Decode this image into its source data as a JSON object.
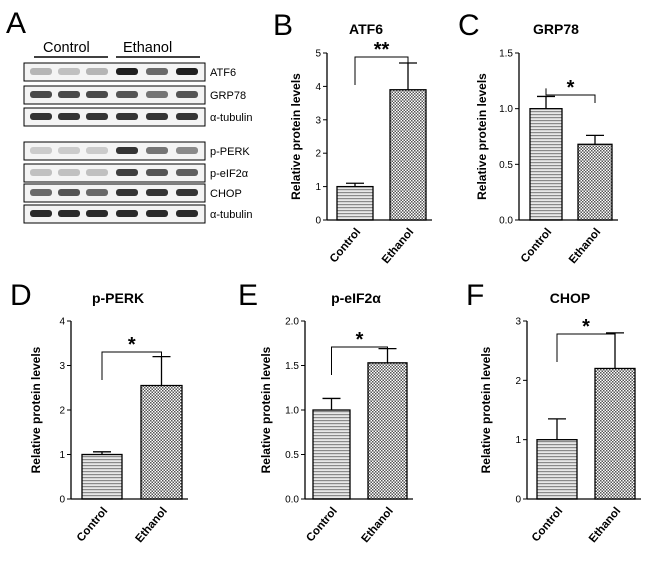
{
  "figure": {
    "panel_letters": [
      "A",
      "B",
      "C",
      "D",
      "E",
      "F"
    ]
  },
  "blot": {
    "groups": [
      "Control",
      "Ethanol"
    ],
    "rows_top": [
      "ATF6",
      "GRP78",
      "α-tubulin"
    ],
    "rows_bottom": [
      "p-PERK",
      "p-eIF2α",
      "CHOP",
      "α-tubulin"
    ]
  },
  "chart_data": [
    {
      "type": "bar",
      "panel": "B",
      "title": "ATF6",
      "xlabel": "",
      "ylabel": "Relative protein levels",
      "categories": [
        "Control",
        "Ethanol"
      ],
      "values": [
        1.0,
        3.9
      ],
      "errors": [
        0.1,
        0.8
      ],
      "ylim": [
        0,
        5
      ],
      "yticks": [
        "0",
        "1",
        "2",
        "3",
        "4",
        "5"
      ],
      "significance": "**",
      "grid": false
    },
    {
      "type": "bar",
      "panel": "C",
      "title": "GRP78",
      "xlabel": "",
      "ylabel": "Relative protein levels",
      "categories": [
        "Control",
        "Ethanol"
      ],
      "values": [
        1.0,
        0.68
      ],
      "errors": [
        0.11,
        0.08
      ],
      "ylim": [
        0,
        1.5
      ],
      "yticks": [
        "0.0",
        "0.5",
        "1.0",
        "1.5"
      ],
      "significance": "*",
      "grid": false
    },
    {
      "type": "bar",
      "panel": "D",
      "title": "p-PERK",
      "xlabel": "",
      "ylabel": "Relative protein levels",
      "categories": [
        "Control",
        "Ethanol"
      ],
      "values": [
        1.0,
        2.55
      ],
      "errors": [
        0.06,
        0.65
      ],
      "ylim": [
        0,
        4
      ],
      "yticks": [
        "0",
        "1",
        "2",
        "3",
        "4"
      ],
      "significance": "*",
      "grid": false
    },
    {
      "type": "bar",
      "panel": "E",
      "title": "p-eIF2α",
      "xlabel": "",
      "ylabel": "Relative protein levels",
      "categories": [
        "Control",
        "Ethanol"
      ],
      "values": [
        1.0,
        1.53
      ],
      "errors": [
        0.13,
        0.16
      ],
      "ylim": [
        0,
        2.0
      ],
      "yticks": [
        "0.0",
        "0.5",
        "1.0",
        "1.5",
        "2.0"
      ],
      "significance": "*",
      "grid": false
    },
    {
      "type": "bar",
      "panel": "F",
      "title": "CHOP",
      "xlabel": "",
      "ylabel": "Relative protein levels",
      "categories": [
        "Control",
        "Ethanol"
      ],
      "values": [
        1.0,
        2.2
      ],
      "errors": [
        0.35,
        0.6
      ],
      "ylim": [
        0,
        3
      ],
      "yticks": [
        "0",
        "1",
        "2",
        "3"
      ],
      "significance": "*",
      "grid": false
    }
  ]
}
